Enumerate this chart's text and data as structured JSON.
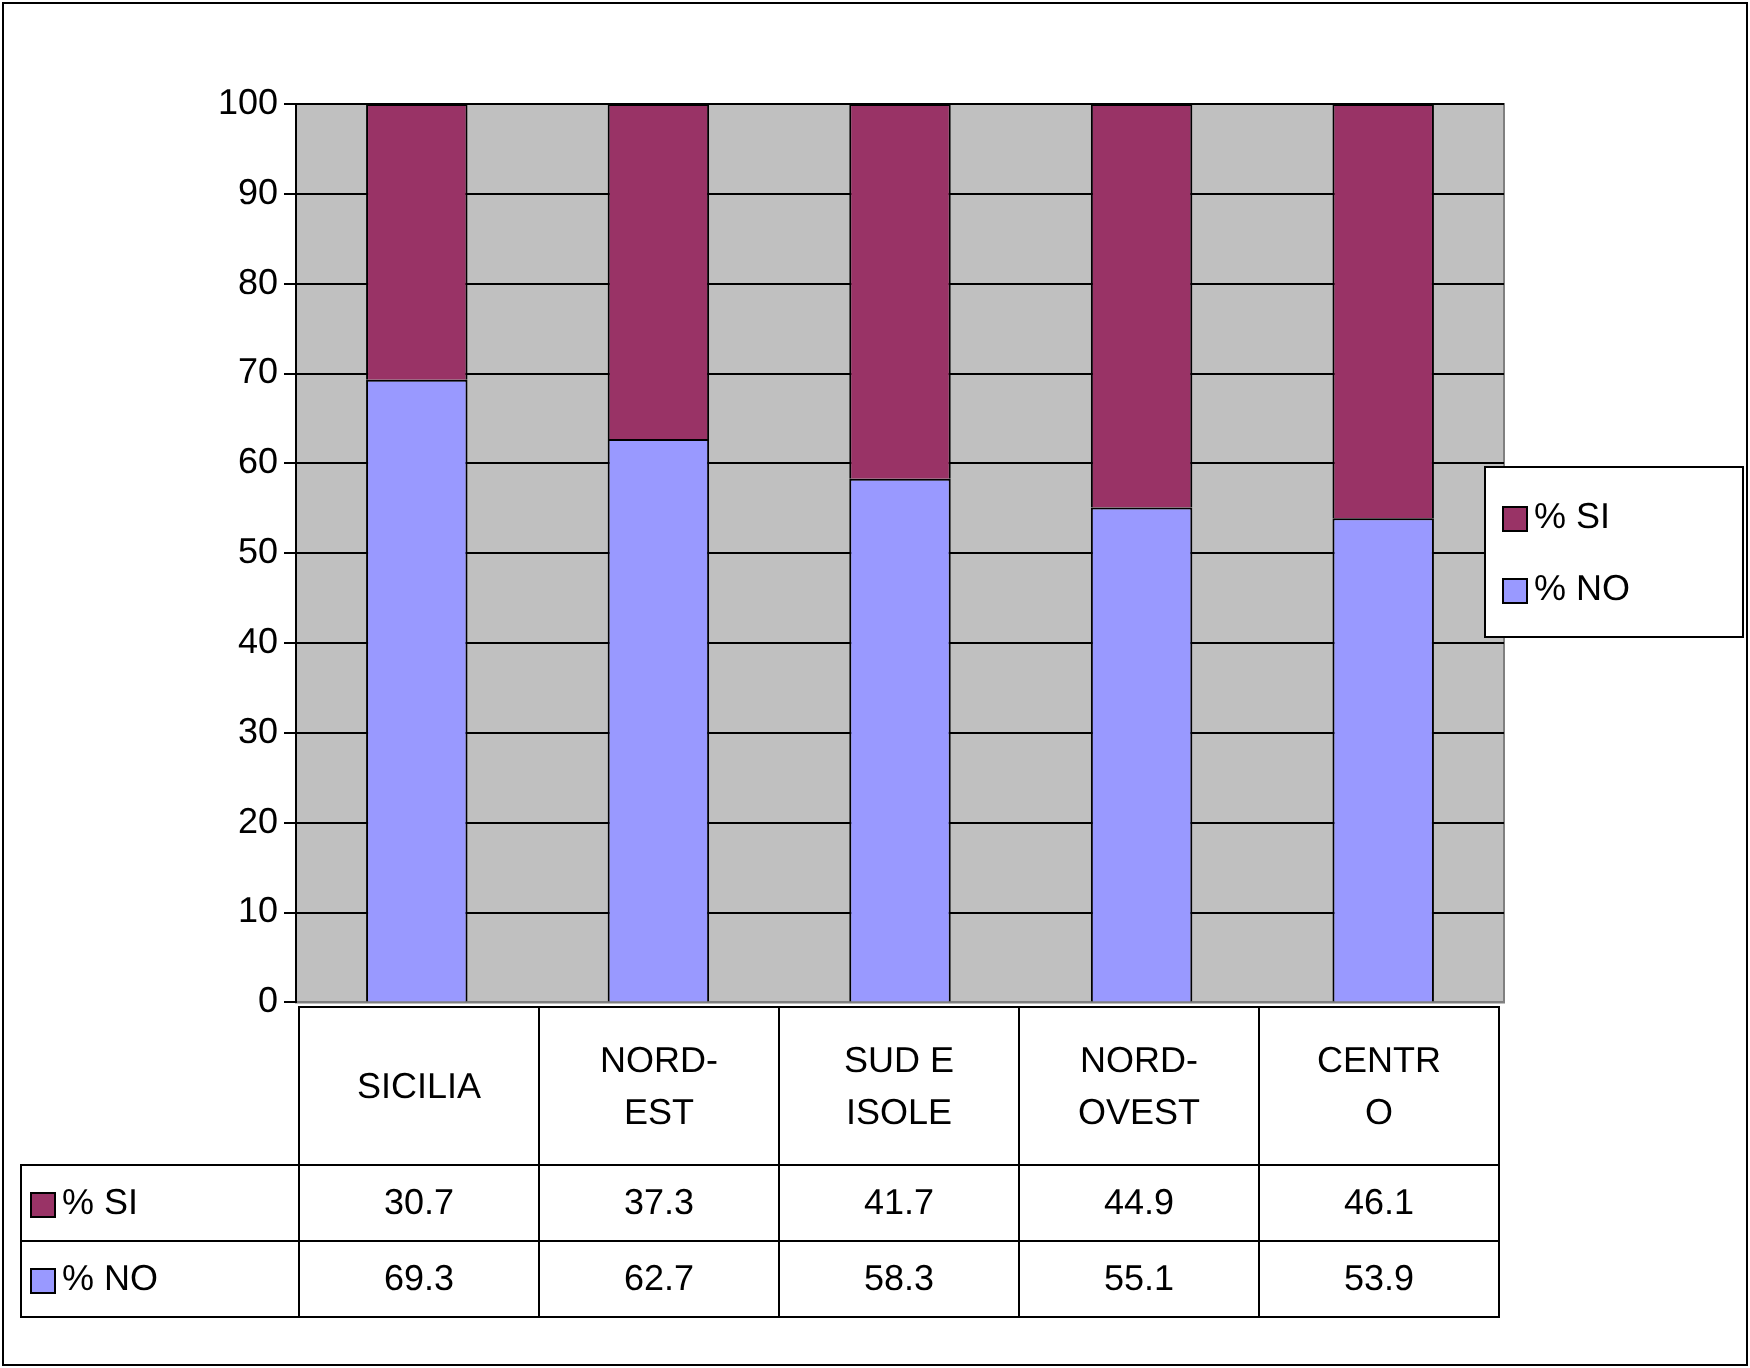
{
  "chart_data": {
    "type": "bar",
    "stacked": true,
    "categories": [
      "SICILIA",
      "NORD-EST",
      "SUD E ISOLE",
      "NORD-OVEST",
      "CENTRO"
    ],
    "series": [
      {
        "name": "% NO",
        "color": "#9999ff",
        "values": [
          69.3,
          62.7,
          58.3,
          55.1,
          53.9
        ]
      },
      {
        "name": "% SI",
        "color": "#993366",
        "values": [
          30.7,
          37.3,
          41.7,
          44.9,
          46.1
        ]
      }
    ],
    "ylim": [
      0,
      100
    ],
    "yticks": [
      0,
      10,
      20,
      30,
      40,
      50,
      60,
      70,
      80,
      90,
      100
    ],
    "grid": "y",
    "legend": "right",
    "data_labels": true
  }
}
